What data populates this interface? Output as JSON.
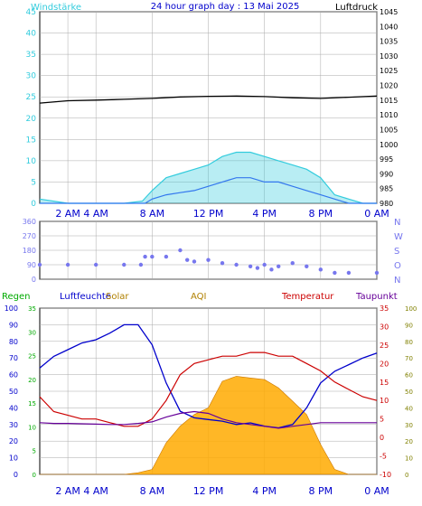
{
  "header": {
    "left_label": "Windstärke",
    "title": "24 hour graph day : 13 Mai 2025",
    "right_label": "Luftdruck"
  },
  "colors": {
    "wind": "#33ccdd",
    "wind_avg": "#3377ee",
    "pressure": "#000000",
    "direction": "#7777ee",
    "humidity": "#0000cc",
    "temperature": "#cc0000",
    "dewpoint": "#660099",
    "solar": "#ffaa00",
    "rain": "#00aa00",
    "grid": "#aaaaaa"
  },
  "time_axis": [
    "2 AM",
    "4 AM",
    "8 AM",
    "12 PM",
    "4 PM",
    "8 PM",
    "0 AM"
  ],
  "chart_data": [
    {
      "type": "line",
      "name": "wind-pressure",
      "x_unit": "hours",
      "y_left_ticks": [
        "45",
        "40",
        "35",
        "30",
        "25",
        "20",
        "15",
        "10",
        "5",
        "0"
      ],
      "y_left_range": [
        0,
        45
      ],
      "y_right_ticks": [
        "1045",
        "1040",
        "1035",
        "1030",
        "1025",
        "1020",
        "1015",
        "1010",
        "1005",
        "1000",
        "995",
        "990",
        "985",
        "980"
      ],
      "y_right_range": [
        980,
        1045
      ],
      "series": [
        {
          "name": "Windstärke",
          "key": "wind",
          "x": [
            0,
            2,
            4,
            6,
            7.3,
            8,
            9,
            10,
            11,
            12,
            13,
            14,
            15,
            16,
            17,
            18,
            19,
            20,
            21,
            22,
            23,
            24
          ],
          "values": [
            1,
            0,
            0,
            0,
            0.5,
            3,
            6,
            7,
            8,
            9,
            11,
            12,
            12,
            11,
            10,
            9,
            8,
            6,
            2,
            1,
            0,
            0
          ]
        },
        {
          "name": "Windstärke Mittel",
          "key": "wind_avg",
          "x": [
            0,
            7.5,
            8,
            9,
            10,
            11,
            12,
            13,
            14,
            15,
            16,
            17,
            18,
            19,
            20,
            21,
            22,
            24
          ],
          "values": [
            0,
            0,
            1,
            2,
            2.5,
            3,
            4,
            5,
            6,
            6,
            5,
            5,
            4,
            3,
            2,
            1,
            0,
            0
          ]
        },
        {
          "name": "Luftdruck",
          "key": "pressure",
          "x": [
            0,
            2,
            4,
            6,
            8,
            10,
            12,
            14,
            16,
            18,
            20,
            22,
            24
          ],
          "values": [
            1014,
            1014.8,
            1015,
            1015.3,
            1015.6,
            1016.1,
            1016.3,
            1016.4,
            1016.2,
            1015.8,
            1015.6,
            1016.0,
            1016.4
          ]
        }
      ]
    },
    {
      "type": "scatter",
      "name": "wind-direction",
      "y_ticks": [
        "360",
        "270",
        "180",
        "90",
        "0"
      ],
      "y_range": [
        0,
        360
      ],
      "compass": [
        "N",
        "W",
        "S",
        "O",
        "N"
      ],
      "series": [
        {
          "name": "Windrichtung",
          "key": "direction",
          "x": [
            0,
            2,
            4,
            6,
            7.2,
            7.5,
            8,
            9,
            10,
            10.5,
            11,
            12,
            13,
            14,
            15,
            15.5,
            16,
            16.5,
            17,
            18,
            19,
            20,
            21,
            22,
            24
          ],
          "values": [
            90,
            90,
            90,
            90,
            90,
            140,
            140,
            140,
            180,
            120,
            110,
            120,
            100,
            90,
            80,
            70,
            90,
            60,
            80,
            100,
            80,
            60,
            40,
            40,
            40
          ]
        }
      ]
    },
    {
      "type": "line",
      "name": "temp-hum-solar",
      "legend": [
        "Regen",
        "Luftfeuchte",
        "Solar",
        "AQI",
        "Temperatur",
        "Taupunkt"
      ],
      "y_rain_ticks": [
        "100",
        "90",
        "80",
        "70",
        "60",
        "50",
        "40",
        "30",
        "20",
        "10",
        "0"
      ],
      "y_rain_range": [
        0,
        100
      ],
      "y_hum_ticks": [
        "35",
        "30",
        "25",
        "20",
        "15",
        "10",
        "5",
        "0"
      ],
      "y_temp_ticks": [
        "35",
        "30",
        "25",
        "20",
        "15",
        "10",
        "5",
        "0",
        "-5",
        "-10"
      ],
      "y_temp_range": [
        -10,
        35
      ],
      "y_aqi_ticks": [
        "100",
        "90",
        "80",
        "70",
        "60",
        "50",
        "40",
        "30",
        "20",
        "10",
        "0"
      ],
      "series": [
        {
          "name": "Luftfeuchte",
          "key": "humidity",
          "x": [
            0,
            1,
            2,
            3,
            4,
            5,
            6,
            7,
            8,
            9,
            10,
            11,
            12,
            13,
            14,
            15,
            16,
            17,
            18,
            19,
            20,
            21,
            22,
            23,
            24
          ],
          "values": [
            64,
            71,
            75,
            79,
            81,
            85,
            90,
            90,
            78,
            55,
            38,
            34,
            33,
            32,
            30,
            31,
            29,
            28,
            30,
            40,
            55,
            62,
            66,
            70,
            73
          ]
        },
        {
          "name": "Temperatur",
          "key": "temperature",
          "x": [
            0,
            1,
            2,
            3,
            4,
            5,
            6,
            7,
            8,
            9,
            10,
            11,
            12,
            13,
            14,
            15,
            16,
            17,
            18,
            19,
            20,
            21,
            22,
            23,
            24
          ],
          "values": [
            11,
            7,
            6,
            5,
            5,
            4,
            3,
            3,
            5,
            10,
            17,
            20,
            21,
            22,
            22,
            23,
            23,
            22,
            22,
            20,
            18,
            15,
            13,
            11,
            10
          ]
        },
        {
          "name": "Taupunkt",
          "key": "dewpoint",
          "x": [
            0,
            1,
            2,
            3,
            4,
            5,
            6,
            7,
            8,
            9,
            10,
            11,
            12,
            13,
            14,
            15,
            16,
            17,
            18,
            19,
            20,
            21,
            22,
            23,
            24
          ],
          "values": [
            4,
            3.8,
            3.8,
            3.7,
            3.6,
            3.5,
            3.5,
            3.8,
            4.2,
            5.5,
            6.5,
            7,
            6.5,
            5,
            4,
            3.5,
            3,
            2.5,
            3,
            3.5,
            4,
            4,
            4,
            4,
            4
          ]
        },
        {
          "name": "Solar",
          "key": "solar",
          "x": [
            0,
            6,
            7,
            8,
            9,
            10,
            11,
            12,
            13,
            14,
            15,
            16,
            17,
            18,
            19,
            20,
            21,
            22,
            24
          ],
          "values": [
            0,
            0,
            1,
            3,
            19,
            29,
            36,
            40,
            56,
            59,
            58,
            57,
            52,
            44,
            36,
            18,
            3,
            0,
            0
          ]
        }
      ]
    }
  ]
}
